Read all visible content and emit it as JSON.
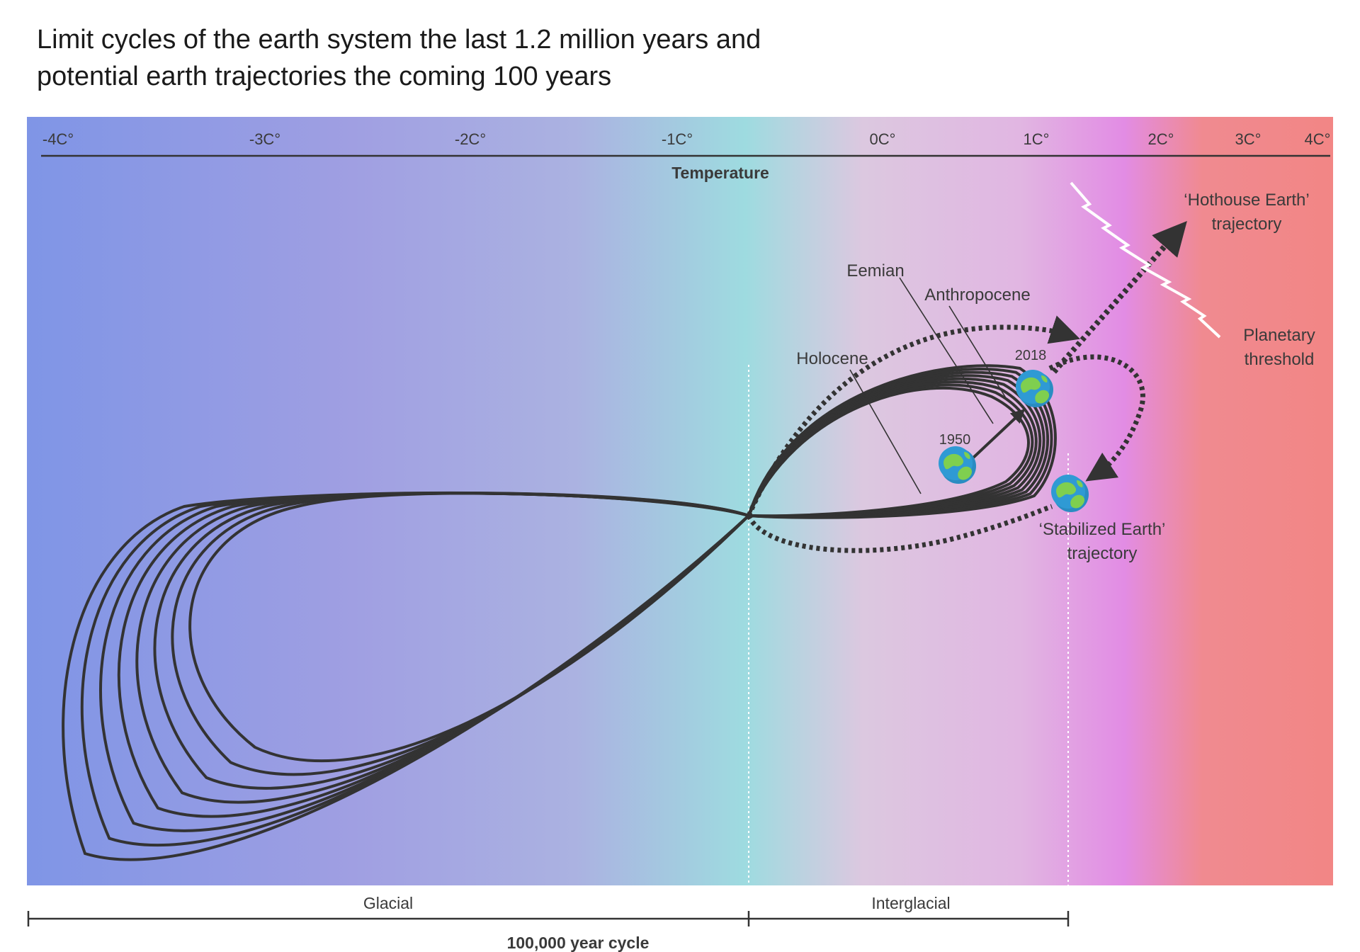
{
  "title": {
    "line1": "Limit cycles of the earth system the last 1.2 million years and",
    "line2": "potential earth trajectories the coming 100 years"
  },
  "temperature_axis": {
    "label": "Temperature",
    "ticks": [
      "-4C°",
      "-3C°",
      "-2C°",
      "-1C°",
      "0C°",
      "1C°",
      "2C°",
      "3C°",
      "4C°"
    ]
  },
  "gradient_colors": [
    "#7f95e6",
    "#a09fe2",
    "#abb2e1",
    "#9edbe0",
    "#dcc8e0",
    "#e1b6e2",
    "#e28ce4",
    "#f08a90",
    "#f28685"
  ],
  "labels": {
    "eemian": "Eemian",
    "anthropocene": "Anthropocene",
    "holocene": "Holocene",
    "year_2018": "2018",
    "year_1950": "1950",
    "hothouse_line1": "‘Hothouse Earth’",
    "hothouse_line2": "trajectory",
    "planetary_line1": "Planetary",
    "planetary_line2": "threshold",
    "stabilized_line1": "‘Stabilized Earth’",
    "stabilized_line2": "trajectory"
  },
  "bottom_axis": {
    "glacial": "Glacial",
    "interglacial": "Interglacial",
    "cycle": "100,000 year cycle"
  },
  "icons": [
    "earth-globe-icon"
  ]
}
